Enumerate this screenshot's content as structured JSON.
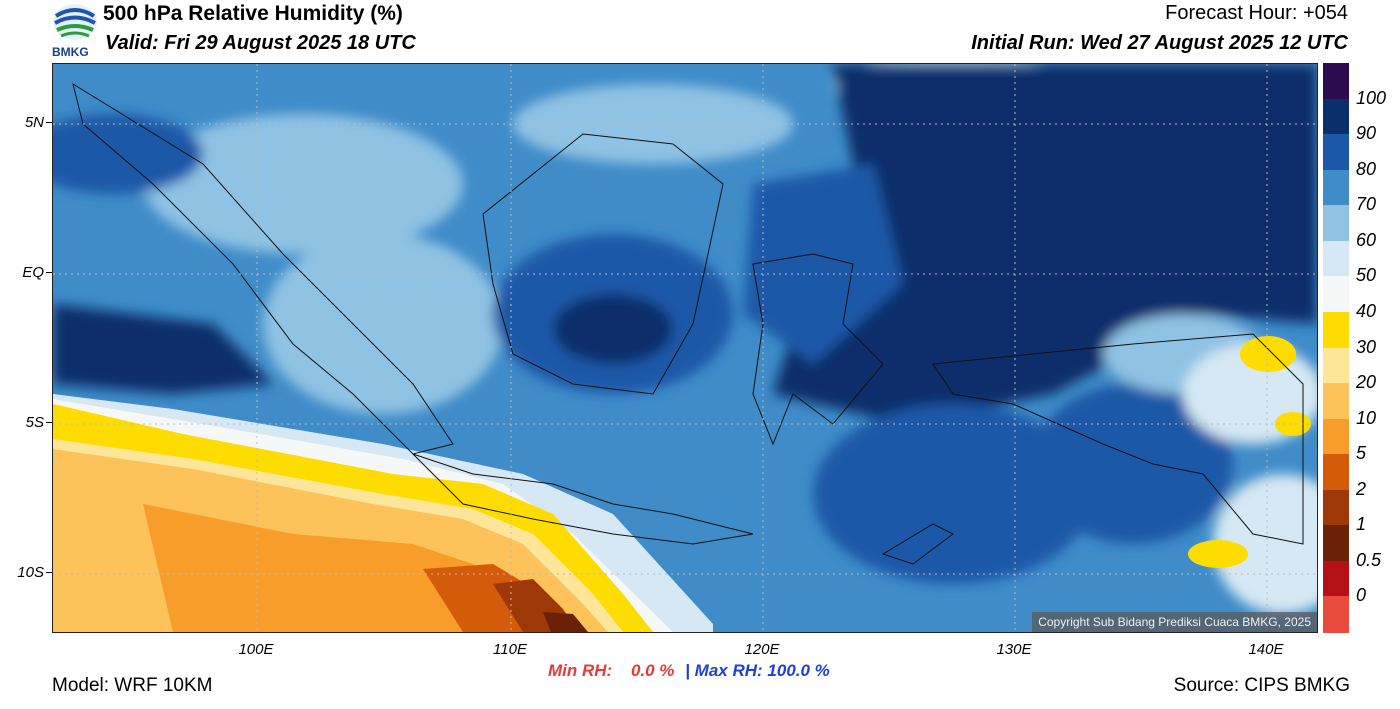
{
  "header": {
    "title": "500 hPa Relative Humidity (%)",
    "valid": "Valid: Fri 29 August 2025 18 UTC",
    "forecast_hour": "Forecast Hour: +054",
    "initial_run": "Initial Run: Wed 27 August 2025 12 UTC",
    "logo_text": "BMKG"
  },
  "map": {
    "lat_labels": [
      "5N",
      "EQ",
      "5S",
      "10S"
    ],
    "lon_labels": [
      "100E",
      "110E",
      "120E",
      "130E",
      "140E"
    ],
    "copyright": "Copyright Sub Bidang Prediksi Cuaca BMKG, 2025"
  },
  "colorbar": {
    "labels": [
      "100",
      "90",
      "80",
      "70",
      "60",
      "50",
      "40",
      "30",
      "20",
      "10",
      "5",
      "2",
      "1",
      "0.5",
      "0"
    ],
    "colors": [
      "#2e0a4f",
      "#0b2f6b",
      "#1c58a8",
      "#3f8cc9",
      "#8fc2e3",
      "#d5e8f3",
      "#f6f7f7",
      "#fedc00",
      "#fde69a",
      "#fdc25a",
      "#f89c2a",
      "#d35b0a",
      "#9e3808",
      "#6b2108",
      "#b61017",
      "#e94b3c"
    ]
  },
  "footer": {
    "model": "Model: WRF 10KM",
    "source": "Source: CIPS BMKG",
    "min_rh_label": "Min RH:",
    "min_rh_value": "0.0 %",
    "separator": "|",
    "max_rh_label": "Max RH:",
    "max_rh_value": "100.0 %"
  }
}
